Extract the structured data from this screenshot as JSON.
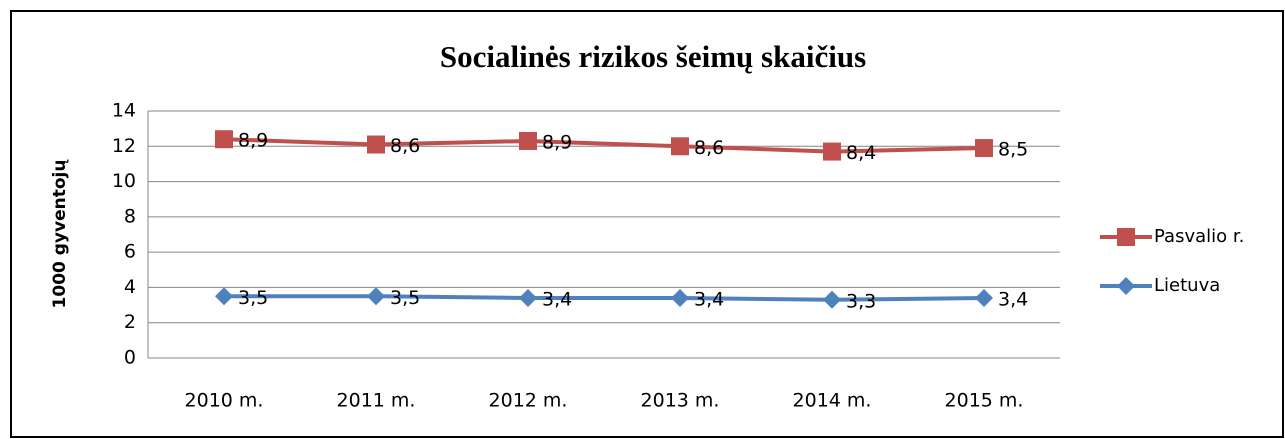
{
  "chart_data": {
    "type": "line",
    "stacked": true,
    "title": "Socialinės rizikos šeimų skaičius",
    "y_label": "1000 gyventojų",
    "categories": [
      "2010 m.",
      "2011 m.",
      "2012 m.",
      "2013 m.",
      "2014 m.",
      "2015 m."
    ],
    "series": [
      {
        "name": "Pasvalio r.",
        "color": "#c0504d",
        "marker": "square",
        "values": [
          8.9,
          8.6,
          8.9,
          8.6,
          8.4,
          8.5
        ],
        "value_labels": [
          "8,9",
          "8,6",
          "8,9",
          "8,6",
          "8,4",
          "8,5"
        ]
      },
      {
        "name": "Lietuva",
        "color": "#4f81bd",
        "marker": "diamond",
        "values": [
          3.5,
          3.5,
          3.4,
          3.4,
          3.3,
          3.4
        ],
        "value_labels": [
          "3,5",
          "3,5",
          "3,4",
          "3,4",
          "3,3",
          "3,4"
        ]
      }
    ],
    "ylim": [
      0,
      14
    ],
    "yticks": [
      0,
      2,
      4,
      6,
      8,
      10,
      12,
      14
    ],
    "grid": true,
    "legend": "right"
  }
}
